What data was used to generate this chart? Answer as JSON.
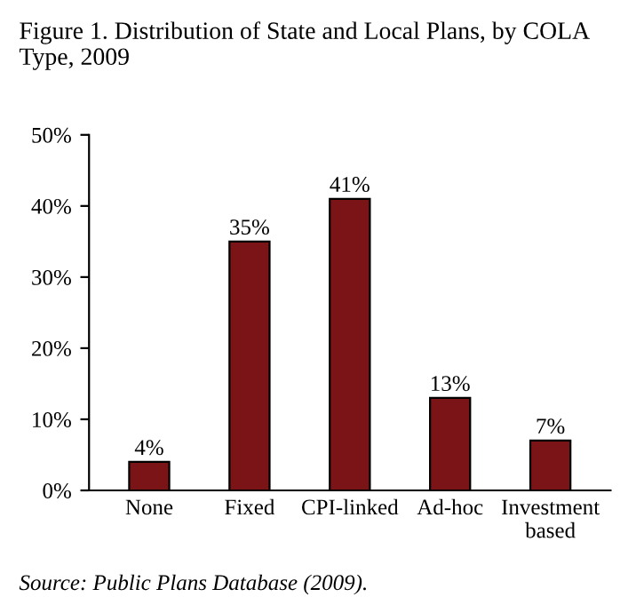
{
  "chart_data": {
    "type": "bar",
    "title": "Figure 1. Distribution of State and Local Plans, by COLA Type, 2009",
    "categories": [
      "None",
      "Fixed",
      "CPI-linked",
      "Ad-hoc",
      "Investment\nbased"
    ],
    "values": [
      4,
      35,
      41,
      13,
      7
    ],
    "color": "#7b1416",
    "value_labels": [
      "4%",
      "35%",
      "41%",
      "13%",
      "7%"
    ],
    "ylim": [
      0,
      50
    ],
    "yticks": [
      {
        "value": 0,
        "label": "0%"
      },
      {
        "value": 10,
        "label": "10%"
      },
      {
        "value": 20,
        "label": "20%"
      },
      {
        "value": 30,
        "label": "30%"
      },
      {
        "value": 40,
        "label": "40%"
      },
      {
        "value": 50,
        "label": "50%"
      }
    ],
    "grid": false,
    "annotations": [
      "Source: Public Plans Database (2009)."
    ]
  }
}
